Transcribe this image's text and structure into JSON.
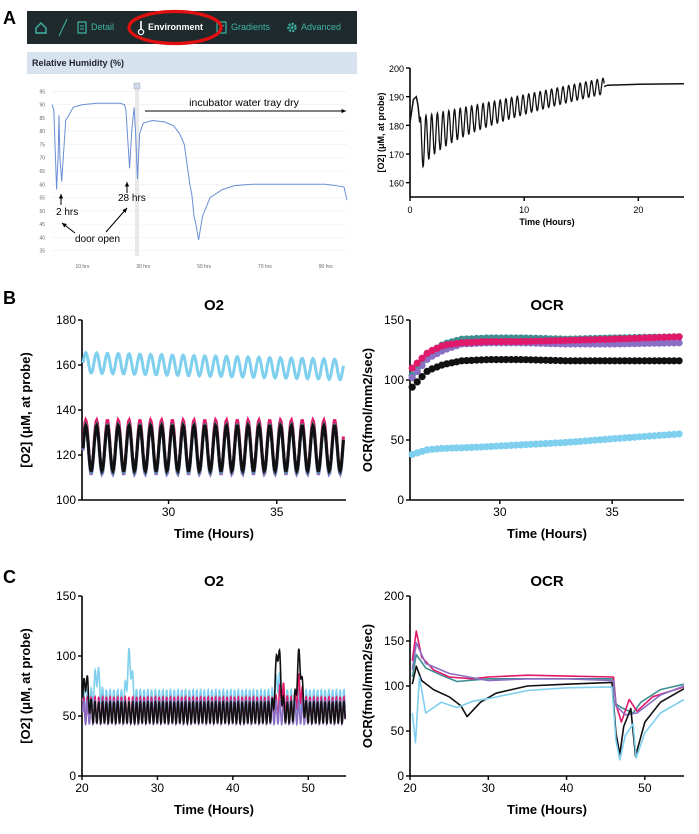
{
  "panels": {
    "a": "A",
    "b": "B",
    "c": "C"
  },
  "tabs": {
    "detail": "Detail",
    "environment": "Environment",
    "gradients": "Gradients",
    "advanced": "Advanced"
  },
  "humidity": {
    "title": "Relative Humidity (%)",
    "annotations": {
      "dry": "incubator water tray dry",
      "hrs2": "2 hrs",
      "hrs28": "28 hrs",
      "door": "door open"
    }
  },
  "colors": {
    "black": "#111111",
    "skyblue": "#7fcfee",
    "magenta": "#e0196b",
    "purple": "#8a6fc4",
    "teal": "#3f8f92",
    "humidity_line": "#6a8fd6",
    "highlight": "#e01010"
  },
  "chart_data": [
    {
      "id": "humidity",
      "type": "line",
      "title": "Relative Humidity (%)",
      "y_ticks": [
        "95",
        "90",
        "85",
        "80",
        "75",
        "70",
        "65",
        "60",
        "55",
        "50",
        "45",
        "40",
        "35"
      ],
      "x_ticks": [
        "10 hrs",
        "30 hrs",
        "50 hrs",
        "70 hrs",
        "90 hrs"
      ],
      "xlim": [
        0,
        97
      ],
      "ylim": [
        33,
        97
      ],
      "series": [
        {
          "name": "Relative Humidity",
          "x": [
            0,
            0.6,
            1.5,
            2.0,
            2.3,
            2.6,
            3.2,
            4.5,
            7,
            10,
            15,
            20,
            22.5,
            23.8,
            24.3,
            25.5,
            26.2,
            27,
            27.5,
            28.1,
            28.8,
            30,
            33,
            37,
            40,
            42,
            43.5,
            44.6,
            45.3,
            46,
            46.7,
            47.3,
            48.2,
            49.5,
            52,
            56,
            60,
            66,
            72,
            80,
            90,
            96,
            97
          ],
          "y": [
            90,
            88,
            58,
            70,
            86,
            70,
            61,
            84,
            89,
            90,
            90.5,
            90.5,
            90.5,
            90,
            88,
            66,
            80,
            89,
            79,
            62,
            79,
            83,
            84,
            83.5,
            82,
            79,
            75,
            66,
            60,
            56,
            48,
            45,
            39,
            48,
            55,
            58,
            59.5,
            60,
            60,
            60,
            60,
            59,
            54
          ]
        }
      ]
    },
    {
      "id": "o2_top",
      "type": "line",
      "xlabel": "Time (Hours)",
      "ylabel": "[O2] (μM, at probe)",
      "xlim": [
        0,
        24
      ],
      "ylim": [
        155,
        200
      ],
      "x_ticks": [
        0,
        10,
        20
      ],
      "y_ticks": [
        160,
        170,
        180,
        190,
        200
      ],
      "series": [
        {
          "name": "O2",
          "oscillation": {
            "period_hours": 0.5,
            "t_start": 0.9,
            "t_end": 17.0,
            "upper_start": 183,
            "upper_end": 196.5,
            "lower_start": 162,
            "lower_end": 191
          },
          "segments": [
            {
              "x": [
                0,
                0.3,
                0.55,
                0.7,
                0.85
              ],
              "y": [
                181,
                189,
                190,
                187,
                181
              ]
            },
            {
              "x": [
                17.0,
                17.3,
                20,
                24
              ],
              "y": [
                193.5,
                194,
                194.3,
                194.5
              ]
            }
          ]
        }
      ]
    },
    {
      "id": "o2_b",
      "type": "line",
      "title": "O2",
      "xlabel": "Time (Hours)",
      "ylabel": "[O2] (μM, at probe)",
      "xlim": [
        26,
        38.2
      ],
      "ylim": [
        100,
        180
      ],
      "x_ticks": [
        30,
        35
      ],
      "y_ticks": [
        100,
        120,
        140,
        160,
        180
      ],
      "series": [
        {
          "name": "light blue",
          "color": "skyblue",
          "mean_start": 161,
          "mean_end": 158,
          "amplitude": 4.5,
          "period_hours": 0.5
        },
        {
          "name": "magenta",
          "color": "magenta",
          "mean": 124,
          "amplitude": 11.5,
          "period_hours": 0.5
        },
        {
          "name": "purple",
          "color": "purple",
          "mean": 122,
          "amplitude": 10.5,
          "period_hours": 0.5
        },
        {
          "name": "teal",
          "color": "teal",
          "mean": 123,
          "amplitude": 10.5,
          "period_hours": 0.5
        },
        {
          "name": "black",
          "color": "black",
          "mean": 123,
          "amplitude": 10,
          "period_hours": 0.5
        }
      ]
    },
    {
      "id": "ocr_b",
      "type": "scatter",
      "title": "OCR",
      "xlabel": "Time (Hours)",
      "ylabel": "OCR(fmol/mm2/sec)",
      "xlim": [
        26,
        38.2
      ],
      "ylim": [
        0,
        150
      ],
      "x_ticks": [
        30,
        35
      ],
      "y_ticks": [
        0,
        50,
        100,
        150
      ],
      "series": [
        {
          "name": "teal",
          "color": "teal",
          "x": [
            26.1,
            26.8,
            27.5,
            28.3,
            29.5,
            31,
            33,
            35,
            38
          ],
          "y": [
            104,
            122,
            130,
            134,
            135,
            135,
            134,
            135,
            136
          ]
        },
        {
          "name": "purple",
          "color": "purple",
          "x": [
            26.1,
            26.8,
            27.5,
            28.3,
            29.5,
            31,
            33,
            35,
            38
          ],
          "y": [
            102,
            118,
            125,
            130,
            131,
            131,
            130,
            130,
            131
          ]
        },
        {
          "name": "magenta",
          "color": "magenta",
          "x": [
            26.1,
            26.8,
            27.5,
            28.3,
            29.5,
            31,
            33,
            35,
            38
          ],
          "y": [
            110,
            123,
            129,
            131,
            132,
            132,
            133,
            134,
            136
          ]
        },
        {
          "name": "black",
          "color": "black",
          "x": [
            26.1,
            26.8,
            27.5,
            28.3,
            29.5,
            31,
            33,
            35,
            38
          ],
          "y": [
            94,
            108,
            113,
            116,
            117,
            117,
            116,
            116,
            116
          ]
        },
        {
          "name": "light blue",
          "color": "skyblue",
          "x": [
            26.1,
            26.8,
            27.5,
            29,
            31,
            33,
            35,
            38
          ],
          "y": [
            38,
            42,
            43,
            44,
            46,
            48,
            51,
            55
          ]
        }
      ]
    },
    {
      "id": "o2_c",
      "type": "line",
      "title": "O2",
      "xlabel": "Time (Hours)",
      "ylabel": "[O2] (μM, at probe)",
      "xlim": [
        20,
        55
      ],
      "ylim": [
        0,
        150
      ],
      "x_ticks": [
        20,
        30,
        40,
        50
      ],
      "y_ticks": [
        0,
        50,
        100,
        150
      ],
      "series": [
        {
          "name": "light blue",
          "color": "skyblue",
          "mean": 62,
          "amplitude": 10,
          "period_hours": 0.5,
          "bumps": [
            {
              "x": 22,
              "y": 85
            },
            {
              "x": 26.3,
              "y": 97
            },
            {
              "x": 46,
              "y": 80
            }
          ]
        },
        {
          "name": "magenta",
          "color": "magenta",
          "mean": 55,
          "amplitude": 11,
          "period_hours": 0.5,
          "bumps": [
            {
              "x": 46.5,
              "y": 70
            },
            {
              "x": 48.8,
              "y": 75
            }
          ]
        },
        {
          "name": "purple",
          "color": "purple",
          "mean": 53,
          "amplitude": 10,
          "period_hours": 0.5,
          "bumps": []
        },
        {
          "name": "black",
          "color": "black",
          "mean": 53,
          "amplitude": 9,
          "period_hours": 0.5,
          "bumps": [
            {
              "x": 20.5,
              "y": 80
            },
            {
              "x": 46,
              "y": 105
            },
            {
              "x": 48.8,
              "y": 98
            }
          ]
        }
      ]
    },
    {
      "id": "ocr_c",
      "type": "line",
      "title": "OCR",
      "xlabel": "Time (Hours)",
      "ylabel": "OCR(fmol/mm2/sec)",
      "xlim": [
        20,
        55
      ],
      "ylim": [
        0,
        200
      ],
      "x_ticks": [
        20,
        30,
        40,
        50
      ],
      "y_ticks": [
        0,
        50,
        100,
        150,
        200
      ],
      "series": [
        {
          "name": "teal",
          "color": "teal",
          "x": [
            20.3,
            20.8,
            22,
            24,
            26,
            30,
            36,
            42,
            46,
            46.3,
            47,
            48.5,
            49.5,
            52,
            55
          ],
          "y": [
            110,
            135,
            120,
            112,
            105,
            108,
            108,
            108,
            108,
            80,
            76,
            70,
            82,
            96,
            102
          ]
        },
        {
          "name": "magenta",
          "color": "magenta",
          "x": [
            20.3,
            20.8,
            21.5,
            23,
            25,
            28,
            30,
            35,
            40,
            46,
            46.3,
            47,
            48,
            49,
            51,
            55
          ],
          "y": [
            128,
            161,
            132,
            118,
            110,
            108,
            110,
            112,
            111,
            110,
            80,
            60,
            85,
            72,
            88,
            99
          ]
        },
        {
          "name": "purple",
          "color": "purple",
          "x": [
            20.3,
            20.8,
            22,
            25,
            30,
            35,
            40,
            46,
            46.3,
            47.5,
            49,
            52,
            55
          ],
          "y": [
            118,
            148,
            125,
            114,
            106,
            108,
            108,
            106,
            78,
            68,
            70,
            90,
            100
          ]
        },
        {
          "name": "black",
          "color": "black",
          "x": [
            20.3,
            20.8,
            21.5,
            23,
            25,
            26.5,
            27.3,
            29,
            31,
            35,
            40,
            45.8,
            46.3,
            46.8,
            47.3,
            48.2,
            48.8,
            50,
            52,
            55
          ],
          "y": [
            102,
            122,
            106,
            96,
            88,
            78,
            66,
            82,
            92,
            100,
            102,
            104,
            48,
            24,
            55,
            75,
            22,
            60,
            82,
            97
          ]
        },
        {
          "name": "light blue",
          "color": "skyblue",
          "x": [
            20.3,
            20.7,
            21.2,
            22,
            24,
            26,
            28,
            30,
            35,
            40,
            45.8,
            46.3,
            46.8,
            47.5,
            48.5,
            48.9,
            50,
            52,
            55
          ],
          "y": [
            70,
            37,
            110,
            70,
            82,
            76,
            83,
            86,
            95,
            98,
            99,
            40,
            18,
            45,
            58,
            20,
            48,
            70,
            85
          ]
        }
      ]
    }
  ]
}
